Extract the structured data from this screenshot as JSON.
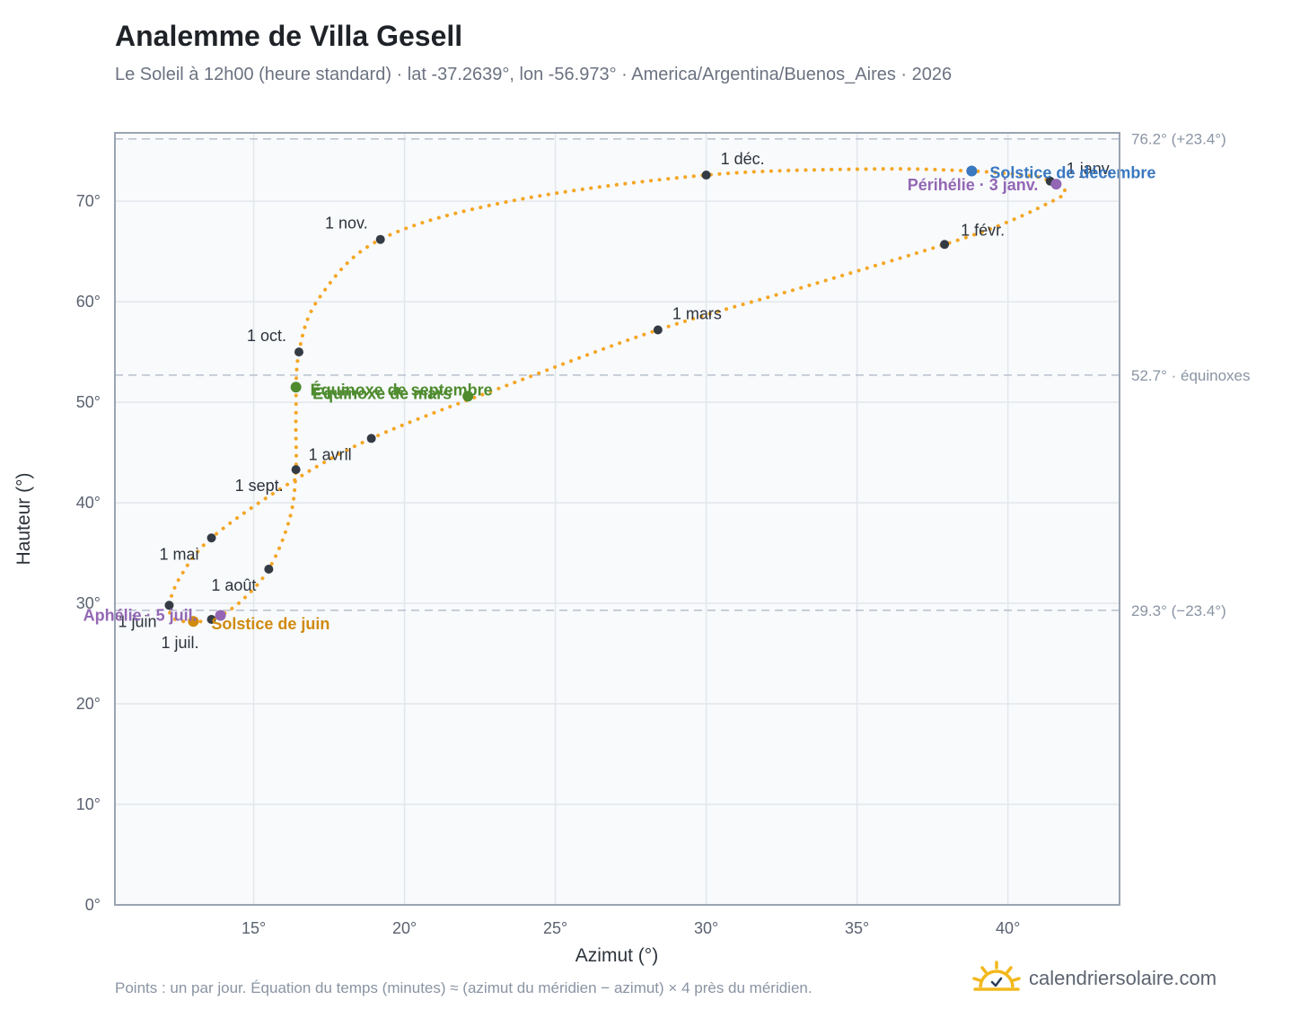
{
  "header": {
    "title": "Analemme de Villa Gesell",
    "subtitle": "Le Soleil à 12h00 (heure standard) · lat -37.2639°, lon -56.973° · America/Argentina/Buenos_Aires · 2026"
  },
  "footer": {
    "note": "Points : un par jour. Équation du temps (minutes) ≈ (azimut du méridien − azimut) × 4 près du méridien.",
    "brand": "calendriersolaire.com",
    "brand_icon": "sun-logo-icon"
  },
  "colors": {
    "curve": "#f5a623",
    "month_marker": "#353b44",
    "equinox": "#4e8b2e",
    "solstice_dec": "#3a78c0",
    "solstice_jun": "#d08a0e",
    "perihelion_aphelion": "#9367b4",
    "reference_line": "#b7c0cc",
    "grid": "#e3e7ec",
    "plot_bg": "#f8fafc",
    "frame": "#9aa4b2"
  },
  "chart_data": {
    "type": "scatter",
    "xlabel": "Azimut (°)",
    "ylabel": "Hauteur (°)",
    "xlim": [
      10.4,
      43.7
    ],
    "ylim": [
      0,
      76.8
    ],
    "x_ticks": [
      15,
      20,
      25,
      30,
      35,
      40
    ],
    "y_ticks": [
      0,
      10,
      20,
      30,
      40,
      50,
      60,
      70
    ],
    "x_tick_labels": [
      "15°",
      "20°",
      "25°",
      "30°",
      "35°",
      "40°"
    ],
    "y_tick_labels": [
      "0°",
      "10°",
      "20°",
      "30°",
      "40°",
      "50°",
      "60°",
      "70°"
    ],
    "grid": true,
    "daily_points_note": "un par jour",
    "month_markers": [
      {
        "label": "1 janv.",
        "x": 41.4,
        "y": 72.0
      },
      {
        "label": "1 févr.",
        "x": 37.9,
        "y": 65.7
      },
      {
        "label": "1 mars",
        "x": 28.4,
        "y": 57.2
      },
      {
        "label": "1 avril",
        "x": 18.9,
        "y": 46.4
      },
      {
        "label": "1 mai",
        "x": 13.6,
        "y": 36.5
      },
      {
        "label": "1 juin",
        "x": 12.2,
        "y": 29.8
      },
      {
        "label": "1 juil.",
        "x": 13.6,
        "y": 28.4
      },
      {
        "label": "1 août",
        "x": 15.5,
        "y": 33.4
      },
      {
        "label": "1 sept.",
        "x": 16.4,
        "y": 43.3
      },
      {
        "label": "1 oct.",
        "x": 16.5,
        "y": 55.0
      },
      {
        "label": "1 nov.",
        "x": 19.2,
        "y": 66.2
      },
      {
        "label": "1 déc.",
        "x": 30.0,
        "y": 72.6
      }
    ],
    "events": [
      {
        "label": "Solstice de décembre",
        "x": 38.8,
        "y": 73.0,
        "kind": "solstice_dec"
      },
      {
        "label": "Périhélie · 3 janv.",
        "x": 41.6,
        "y": 71.7,
        "kind": "perihelion_aphelion"
      },
      {
        "label": "Équinoxe de septembre",
        "x": 16.4,
        "y": 51.5,
        "kind": "equinox"
      },
      {
        "label": "Équinoxe de mars",
        "x": 22.1,
        "y": 50.6,
        "kind": "equinox"
      },
      {
        "label": "Solstice de juin",
        "x": 13.0,
        "y": 28.2,
        "kind": "solstice_jun"
      },
      {
        "label": "Aphélie · 5 juil.",
        "x": 13.9,
        "y": 28.8,
        "kind": "perihelion_aphelion"
      }
    ],
    "reference_lines": [
      {
        "y": 76.2,
        "label": "76.2° (+23.4°)"
      },
      {
        "y": 52.7,
        "label": "52.7° · équinoxes"
      },
      {
        "y": 29.3,
        "label": "29.3° (−23.4°)"
      }
    ],
    "curve_path": [
      {
        "x": 41.4,
        "y": 72.0
      },
      {
        "x": 41.9,
        "y": 70.9
      },
      {
        "x": 41.2,
        "y": 69.6
      },
      {
        "x": 39.8,
        "y": 67.7
      },
      {
        "x": 37.9,
        "y": 65.7
      },
      {
        "x": 33.5,
        "y": 61.7
      },
      {
        "x": 28.4,
        "y": 57.2
      },
      {
        "x": 23.5,
        "y": 51.8
      },
      {
        "x": 18.9,
        "y": 46.4
      },
      {
        "x": 16.0,
        "y": 41.6
      },
      {
        "x": 13.6,
        "y": 36.5
      },
      {
        "x": 12.6,
        "y": 32.8
      },
      {
        "x": 12.2,
        "y": 29.8
      },
      {
        "x": 12.4,
        "y": 28.4
      },
      {
        "x": 13.0,
        "y": 28.2
      },
      {
        "x": 13.6,
        "y": 28.4
      },
      {
        "x": 14.5,
        "y": 30.0
      },
      {
        "x": 15.5,
        "y": 33.4
      },
      {
        "x": 16.2,
        "y": 38.5
      },
      {
        "x": 16.4,
        "y": 43.3
      },
      {
        "x": 16.4,
        "y": 48.5
      },
      {
        "x": 16.5,
        "y": 55.0
      },
      {
        "x": 17.2,
        "y": 60.5
      },
      {
        "x": 19.2,
        "y": 66.2
      },
      {
        "x": 23.5,
        "y": 70.0
      },
      {
        "x": 30.0,
        "y": 72.6
      },
      {
        "x": 35.5,
        "y": 73.2
      },
      {
        "x": 38.8,
        "y": 73.0
      },
      {
        "x": 40.8,
        "y": 72.5
      },
      {
        "x": 41.4,
        "y": 72.0
      }
    ]
  }
}
